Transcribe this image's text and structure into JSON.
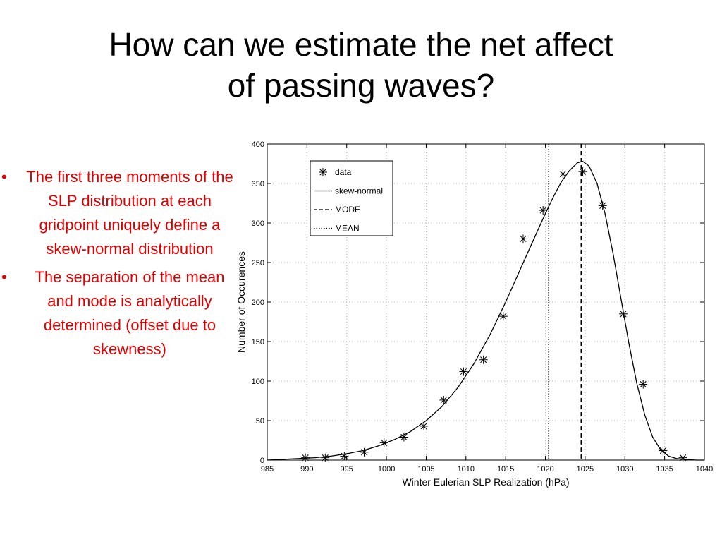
{
  "slide": {
    "title_line1": "How can we estimate the net affect",
    "title_line2": "of passing waves?",
    "bullet_marker": "•",
    "bullets": [
      "The first three moments of the SLP distribution at each gridpoint uniquely define a skew-normal distribution",
      "The separation of the mean and mode is analytically determined (offset due to skewness)"
    ],
    "text_color": "#e00000"
  },
  "chart_data": {
    "type": "line",
    "xlabel": "Winter Eulerian SLP Realization (hPa)",
    "ylabel": "Number of Occurences",
    "xlim": [
      985,
      1040
    ],
    "ylim": [
      0,
      400
    ],
    "xticks": [
      985,
      990,
      995,
      1000,
      1005,
      1010,
      1015,
      1020,
      1025,
      1030,
      1035,
      1040
    ],
    "yticks": [
      0,
      50,
      100,
      150,
      200,
      250,
      300,
      350,
      400
    ],
    "grid": true,
    "legend_position": "top-left",
    "legend": [
      "data",
      "skew-normal",
      "MODE",
      "MEAN"
    ],
    "series": [
      {
        "name": "data",
        "style": "asterisk-markers",
        "x": [
          989.8,
          992.3,
          994.7,
          997.2,
          999.7,
          1002.2,
          1004.7,
          1007.2,
          1009.7,
          1012.2,
          1014.7,
          1017.2,
          1019.7,
          1022.2,
          1024.7,
          1027.2,
          1029.8,
          1032.3,
          1034.8,
          1037.3
        ],
        "y": [
          3,
          3,
          5,
          10,
          22,
          29,
          43,
          76,
          112,
          127,
          182,
          280,
          316,
          362,
          365,
          322,
          185,
          96,
          12,
          3
        ]
      },
      {
        "name": "skew-normal",
        "style": "solid-line",
        "x": [
          985,
          987,
          989,
          991,
          993,
          995,
          997,
          999,
          1001,
          1003,
          1005,
          1007,
          1009,
          1011,
          1013,
          1015,
          1017,
          1019,
          1020,
          1021,
          1022,
          1023,
          1024,
          1024.7,
          1025.5,
          1026.5,
          1027.5,
          1028.5,
          1029.5,
          1030.5,
          1031.5,
          1032.5,
          1033.5,
          1034.5,
          1035.5,
          1036.5,
          1037.5,
          1039,
          1040
        ],
        "y": [
          0,
          1,
          2,
          3,
          5,
          8,
          12,
          18,
          26,
          36,
          50,
          68,
          92,
          122,
          158,
          200,
          245,
          290,
          312,
          333,
          352,
          366,
          376,
          378,
          372,
          350,
          312,
          262,
          205,
          148,
          97,
          57,
          29,
          13,
          5,
          2,
          1,
          0,
          0
        ]
      }
    ],
    "vlines": [
      {
        "name": "MODE",
        "x": 1024.5,
        "style": "dashed"
      },
      {
        "name": "MEAN",
        "x": 1020.4,
        "style": "dotted"
      }
    ]
  }
}
